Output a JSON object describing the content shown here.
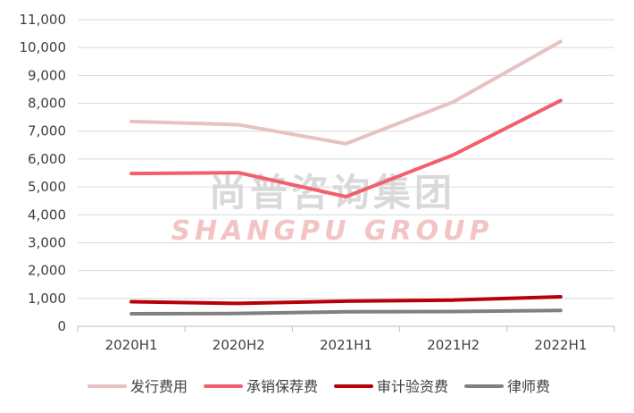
{
  "chart_data": {
    "type": "line",
    "categories": [
      "2020H1",
      "2020H2",
      "2021H1",
      "2021H2",
      "2022H1"
    ],
    "ylim": [
      0,
      11000
    ],
    "yticks": [
      0,
      1000,
      2000,
      3000,
      4000,
      5000,
      6000,
      7000,
      8000,
      9000,
      10000,
      11000
    ],
    "ytick_labels": [
      "0",
      "1,000",
      "2,000",
      "3,000",
      "4,000",
      "5,000",
      "6,000",
      "7,000",
      "8,000",
      "9,000",
      "10,000",
      "11,000"
    ],
    "grid": "horizontal",
    "legend_position": "bottom",
    "series": [
      {
        "name": "发行费用",
        "color": "#e8c1c3",
        "values": [
          7350,
          7230,
          6550,
          8050,
          10220
        ]
      },
      {
        "name": "承销保荐费",
        "color": "#f25e6c",
        "values": [
          5480,
          5510,
          4650,
          6150,
          8100
        ]
      },
      {
        "name": "审计验资费",
        "color": "#b8000a",
        "values": [
          880,
          820,
          900,
          940,
          1060
        ]
      },
      {
        "name": "律师费",
        "color": "#808080",
        "values": [
          450,
          460,
          520,
          530,
          570
        ]
      }
    ]
  },
  "watermark": {
    "cn": "尚普咨询集团",
    "en": "SHANGPU GROUP"
  }
}
